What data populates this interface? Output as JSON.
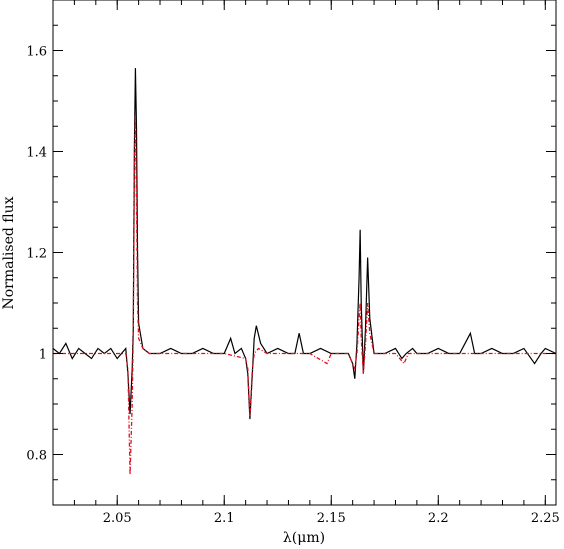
{
  "chart_data": {
    "type": "line",
    "title": "",
    "xlabel": "λ(μm)",
    "ylabel": "Normalised flux",
    "xlim": [
      2.02,
      2.255
    ],
    "ylim": [
      0.7,
      1.7
    ],
    "grid": false,
    "x_ticks": [
      {
        "value": 2.05,
        "label": "2.05"
      },
      {
        "value": 2.1,
        "label": "2.1"
      },
      {
        "value": 2.15,
        "label": "2.15"
      },
      {
        "value": 2.2,
        "label": "2.2"
      },
      {
        "value": 2.25,
        "label": "2.25"
      }
    ],
    "y_ticks": [
      {
        "value": 0.8,
        "label": "0.8"
      },
      {
        "value": 1.0,
        "label": "1"
      },
      {
        "value": 1.2,
        "label": "1.2"
      },
      {
        "value": 1.4,
        "label": "1.4"
      },
      {
        "value": 1.6,
        "label": "1.6"
      }
    ],
    "series": [
      {
        "color": "#000000",
        "style": "solid",
        "points": [
          [
            2.02,
            1.01
          ],
          [
            2.023,
            1.0
          ],
          [
            2.026,
            1.02
          ],
          [
            2.029,
            0.99
          ],
          [
            2.032,
            1.01
          ],
          [
            2.035,
            1.0
          ],
          [
            2.038,
            0.99
          ],
          [
            2.041,
            1.01
          ],
          [
            2.044,
            1.0
          ],
          [
            2.047,
            1.01
          ],
          [
            2.05,
            0.99
          ],
          [
            2.052,
            1.0
          ],
          [
            2.054,
            1.01
          ],
          [
            2.055,
            0.96
          ],
          [
            2.056,
            0.88
          ],
          [
            2.057,
            0.97
          ],
          [
            2.0575,
            1.05
          ],
          [
            2.058,
            1.4
          ],
          [
            2.0585,
            1.565
          ],
          [
            2.059,
            1.45
          ],
          [
            2.0595,
            1.2
          ],
          [
            2.06,
            1.06
          ],
          [
            2.062,
            1.01
          ],
          [
            2.065,
            1.0
          ],
          [
            2.07,
            1.0
          ],
          [
            2.075,
            1.01
          ],
          [
            2.08,
            1.0
          ],
          [
            2.085,
            1.0
          ],
          [
            2.09,
            1.01
          ],
          [
            2.095,
            1.0
          ],
          [
            2.1,
            1.0
          ],
          [
            2.103,
            1.03
          ],
          [
            2.105,
            1.0
          ],
          [
            2.108,
            1.01
          ],
          [
            2.11,
            0.99
          ],
          [
            2.111,
            0.96
          ],
          [
            2.112,
            0.87
          ],
          [
            2.113,
            0.95
          ],
          [
            2.114,
            1.03
          ],
          [
            2.115,
            1.055
          ],
          [
            2.117,
            1.02
          ],
          [
            2.12,
            1.0
          ],
          [
            2.125,
            1.01
          ],
          [
            2.13,
            1.0
          ],
          [
            2.133,
            1.0
          ],
          [
            2.135,
            1.04
          ],
          [
            2.137,
            1.0
          ],
          [
            2.14,
            1.0
          ],
          [
            2.145,
            1.01
          ],
          [
            2.15,
            1.0
          ],
          [
            2.155,
            1.0
          ],
          [
            2.158,
            1.0
          ],
          [
            2.16,
            0.98
          ],
          [
            2.161,
            0.95
          ],
          [
            2.162,
            1.02
          ],
          [
            2.163,
            1.15
          ],
          [
            2.1635,
            1.245
          ],
          [
            2.164,
            1.1
          ],
          [
            2.165,
            0.96
          ],
          [
            2.166,
            1.05
          ],
          [
            2.167,
            1.19
          ],
          [
            2.168,
            1.07
          ],
          [
            2.17,
            1.0
          ],
          [
            2.175,
            1.0
          ],
          [
            2.18,
            1.01
          ],
          [
            2.183,
            0.99
          ],
          [
            2.185,
            1.0
          ],
          [
            2.188,
            1.01
          ],
          [
            2.19,
            1.0
          ],
          [
            2.195,
            1.0
          ],
          [
            2.2,
            1.01
          ],
          [
            2.205,
            1.0
          ],
          [
            2.21,
            1.0
          ],
          [
            2.215,
            1.04
          ],
          [
            2.217,
            1.0
          ],
          [
            2.22,
            1.0
          ],
          [
            2.225,
            1.01
          ],
          [
            2.23,
            1.0
          ],
          [
            2.235,
            1.0
          ],
          [
            2.24,
            1.01
          ],
          [
            2.245,
            0.98
          ],
          [
            2.248,
            1.0
          ],
          [
            2.25,
            1.01
          ],
          [
            2.255,
            1.0
          ]
        ]
      },
      {
        "color": "#e0101e",
        "style": "dashed",
        "points": [
          [
            2.02,
            1.0
          ],
          [
            2.03,
            1.0
          ],
          [
            2.04,
            1.0
          ],
          [
            2.05,
            1.0
          ],
          [
            2.054,
            1.0
          ],
          [
            2.055,
            0.97
          ],
          [
            2.056,
            0.76
          ],
          [
            2.057,
            0.9
          ],
          [
            2.0575,
            1.04
          ],
          [
            2.058,
            1.35
          ],
          [
            2.0585,
            1.47
          ],
          [
            2.059,
            1.3
          ],
          [
            2.0595,
            1.1
          ],
          [
            2.06,
            1.03
          ],
          [
            2.062,
            1.01
          ],
          [
            2.065,
            1.0
          ],
          [
            2.08,
            1.0
          ],
          [
            2.1,
            1.0
          ],
          [
            2.11,
            0.99
          ],
          [
            2.111,
            0.97
          ],
          [
            2.112,
            0.875
          ],
          [
            2.113,
            0.96
          ],
          [
            2.114,
            1.0
          ],
          [
            2.116,
            1.01
          ],
          [
            2.12,
            1.0
          ],
          [
            2.14,
            1.0
          ],
          [
            2.148,
            0.98
          ],
          [
            2.15,
            1.0
          ],
          [
            2.158,
            1.0
          ],
          [
            2.16,
            0.98
          ],
          [
            2.161,
            0.97
          ],
          [
            2.162,
            1.0
          ],
          [
            2.163,
            1.07
          ],
          [
            2.1635,
            1.1
          ],
          [
            2.164,
            1.03
          ],
          [
            2.165,
            0.96
          ],
          [
            2.166,
            1.02
          ],
          [
            2.167,
            1.1
          ],
          [
            2.168,
            1.04
          ],
          [
            2.17,
            1.0
          ],
          [
            2.18,
            1.0
          ],
          [
            2.184,
            0.98
          ],
          [
            2.186,
            1.0
          ],
          [
            2.2,
            1.0
          ],
          [
            2.23,
            1.0
          ],
          [
            2.255,
            1.0
          ]
        ]
      }
    ]
  }
}
